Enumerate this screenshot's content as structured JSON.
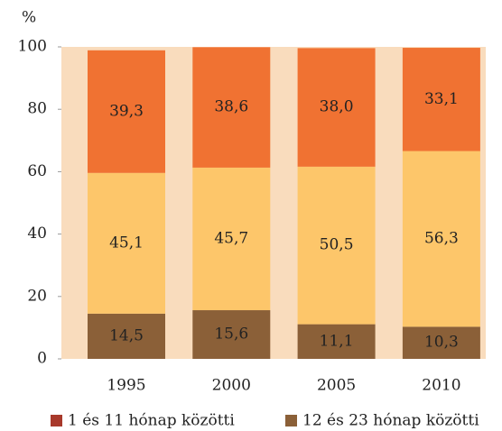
{
  "chart_data": {
    "type": "stacked_bar",
    "ylabel": "%",
    "categories": [
      "1995",
      "2000",
      "2005",
      "2010"
    ],
    "series": [
      {
        "color": "#8b6038",
        "values": [
          14.5,
          15.6,
          11.1,
          10.3
        ],
        "value_labels": [
          "14,5",
          "15,6",
          "11,1",
          "10,3"
        ]
      },
      {
        "color": "#fdc66a",
        "values": [
          45.1,
          45.7,
          50.5,
          56.3
        ],
        "value_labels": [
          "45,1",
          "45,7",
          "50,5",
          "56,3"
        ]
      },
      {
        "color": "#f07232",
        "values": [
          39.3,
          38.6,
          38.0,
          33.1
        ],
        "value_labels": [
          "39,3",
          "38,6",
          "38,0",
          "33,1"
        ]
      }
    ],
    "legend": [
      {
        "name": "1 és 11 hónap közötti",
        "color": "#a8392b"
      },
      {
        "name": "12 és 23 hónap közötti",
        "color": "#8b6038"
      }
    ],
    "ylim": [
      0,
      100
    ],
    "yticks": [
      0,
      20,
      40,
      60,
      80,
      100
    ]
  }
}
